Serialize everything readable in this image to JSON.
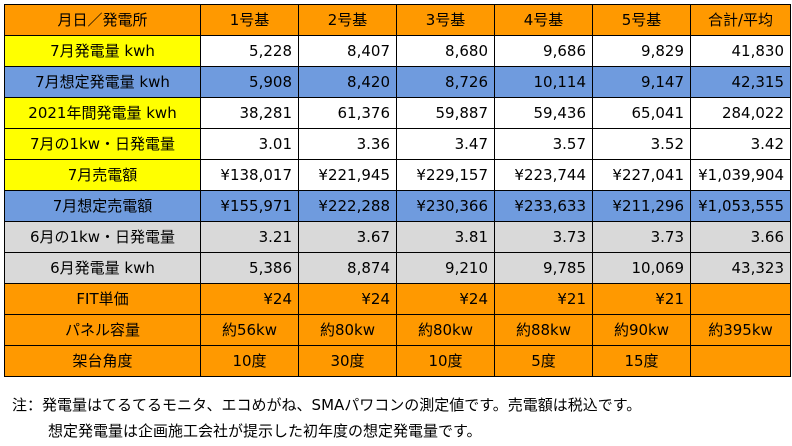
{
  "header": [
    "月日／発電所",
    "1号基",
    "2号基",
    "3号基",
    "4号基",
    "5号基",
    "合計/平均"
  ],
  "rows": [
    {
      "label": "7月発電量 kwh",
      "values": [
        "5,228",
        "8,407",
        "8,680",
        "9,686",
        "9,829",
        "41,830"
      ],
      "labelColor": "#ffff00",
      "cellColor": "#ffffff",
      "align": "num"
    },
    {
      "label": "7月想定発電量 kwh",
      "values": [
        "5,908",
        "8,420",
        "8,726",
        "10,114",
        "9,147",
        "42,315"
      ],
      "labelColor": "#6f9bde",
      "cellColor": "#6f9bde",
      "align": "num"
    },
    {
      "label": "2021年間発電量 kwh",
      "values": [
        "38,281",
        "61,376",
        "59,887",
        "59,436",
        "65,041",
        "284,022"
      ],
      "labelColor": "#ffff00",
      "cellColor": "#ffffff",
      "align": "num"
    },
    {
      "label": "7月の1kw・日発電量",
      "values": [
        "3.01",
        "3.36",
        "3.47",
        "3.57",
        "3.52",
        "3.42"
      ],
      "labelColor": "#ffff00",
      "cellColor": "#ffffff",
      "align": "num"
    },
    {
      "label": "7月売電額",
      "values": [
        "¥138,017",
        "¥221,945",
        "¥229,157",
        "¥223,744",
        "¥227,041",
        "¥1,039,904"
      ],
      "labelColor": "#ffff00",
      "cellColor": "#ffffff",
      "align": "num"
    },
    {
      "label": "7月想定売電額",
      "values": [
        "¥155,971",
        "¥222,288",
        "¥230,366",
        "¥233,633",
        "¥211,296",
        "¥1,053,555"
      ],
      "labelColor": "#6f9bde",
      "cellColor": "#6f9bde",
      "align": "num"
    },
    {
      "label": "6月の1kw・日発電量",
      "values": [
        "3.21",
        "3.67",
        "3.81",
        "3.73",
        "3.73",
        "3.66"
      ],
      "labelColor": "#d9d9d9",
      "cellColor": "#d9d9d9",
      "align": "num"
    },
    {
      "label": "6月発電量 kwh",
      "values": [
        "5,386",
        "8,874",
        "9,210",
        "9,785",
        "10,069",
        "43,323"
      ],
      "labelColor": "#d9d9d9",
      "cellColor": "#d9d9d9",
      "align": "num"
    },
    {
      "label": "FIT単価",
      "values": [
        "¥24",
        "¥24",
        "¥24",
        "¥21",
        "¥21",
        ""
      ],
      "labelColor": "#ff9900",
      "cellColor": "#ff9900",
      "align": "num"
    },
    {
      "label": "パネル容量",
      "values": [
        "約56kw",
        "約80kw",
        "約80kw",
        "約88kw",
        "約90kw",
        "約395kw"
      ],
      "labelColor": "#ff9900",
      "cellColor": "#ff9900",
      "align": "cen"
    },
    {
      "label": "架台角度",
      "values": [
        "10度",
        "30度",
        "10度",
        "5度",
        "15度",
        ""
      ],
      "labelColor": "#ff9900",
      "cellColor": "#ff9900",
      "align": "cen"
    }
  ],
  "notes": {
    "line1": "注：発電量はてるてるモニタ、エコめがね、SMAパワコンの測定値です。売電額は税込です。",
    "line2": "想定発電量は企画施工会社が提示した初年度の想定発電量です。"
  }
}
